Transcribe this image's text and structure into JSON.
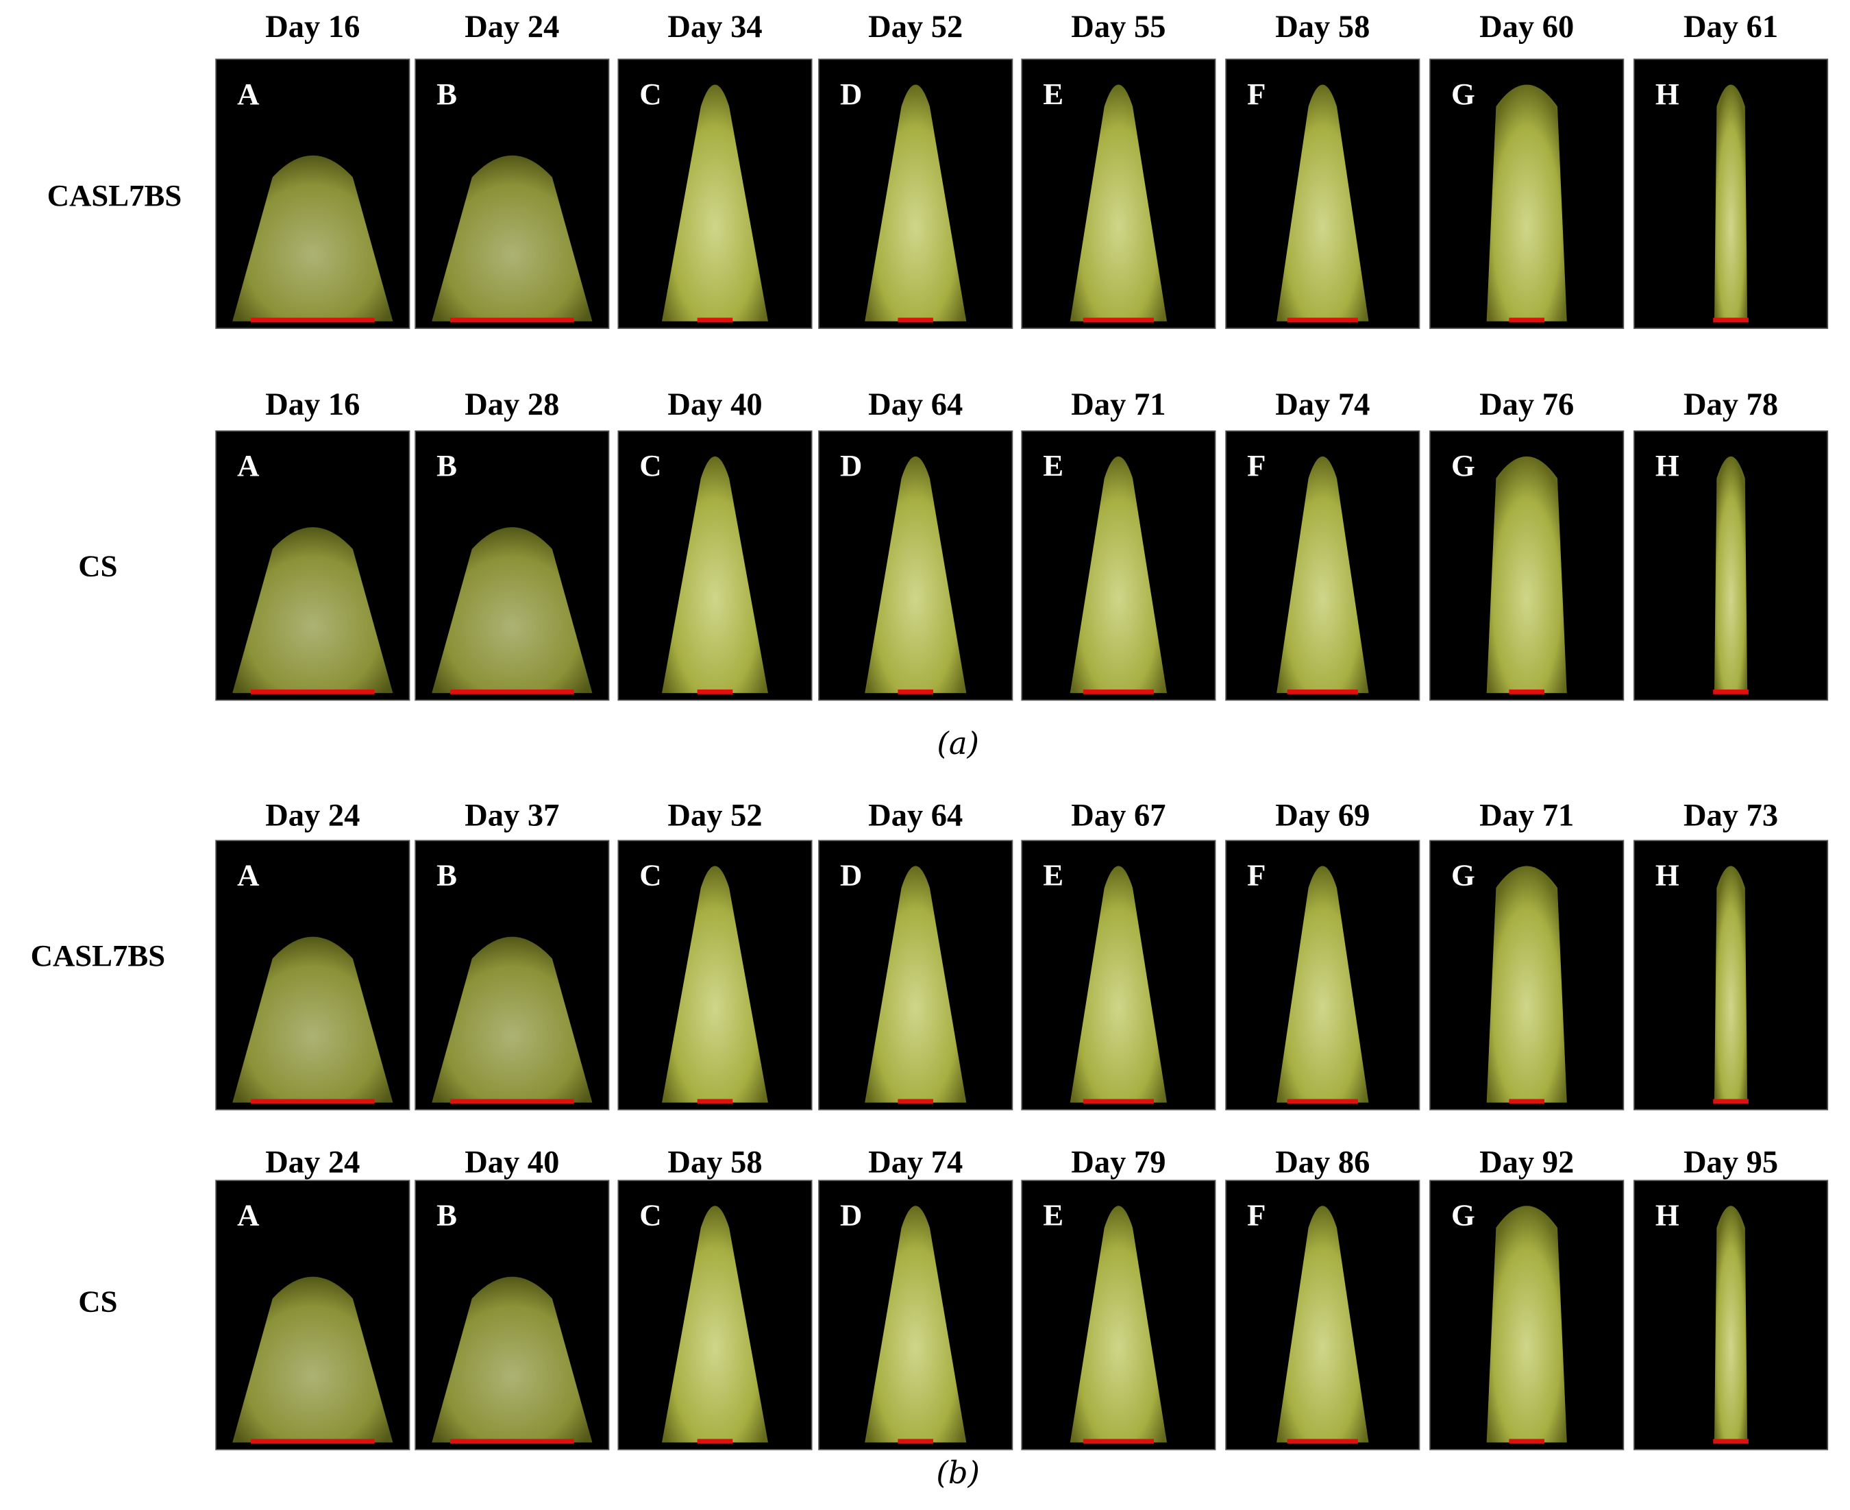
{
  "sections": [
    {
      "caption": "(a)",
      "rows": [
        {
          "label": "CASL7BS",
          "panels": [
            {
              "day": "Day 16",
              "letter": "A"
            },
            {
              "day": "Day 24",
              "letter": "B"
            },
            {
              "day": "Day 34",
              "letter": "C"
            },
            {
              "day": "Day 52",
              "letter": "D"
            },
            {
              "day": "Day 55",
              "letter": "E"
            },
            {
              "day": "Day 58",
              "letter": "F"
            },
            {
              "day": "Day 60",
              "letter": "G"
            },
            {
              "day": "Day 61",
              "letter": "H"
            }
          ]
        },
        {
          "label": "CS",
          "panels": [
            {
              "day": "Day 16",
              "letter": "A"
            },
            {
              "day": "Day 28",
              "letter": "B"
            },
            {
              "day": "Day 40",
              "letter": "C"
            },
            {
              "day": "Day 64",
              "letter": "D"
            },
            {
              "day": "Day 71",
              "letter": "E"
            },
            {
              "day": "Day 74",
              "letter": "F"
            },
            {
              "day": "Day 76",
              "letter": "G"
            },
            {
              "day": "Day 78",
              "letter": "H"
            }
          ]
        }
      ]
    },
    {
      "caption": "(b)",
      "rows": [
        {
          "label": "CASL7BS",
          "panels": [
            {
              "day": "Day 24",
              "letter": "A"
            },
            {
              "day": "Day 37",
              "letter": "B"
            },
            {
              "day": "Day 52",
              "letter": "C"
            },
            {
              "day": "Day 64",
              "letter": "D"
            },
            {
              "day": "Day 67",
              "letter": "E"
            },
            {
              "day": "Day 69",
              "letter": "F"
            },
            {
              "day": "Day 71",
              "letter": "G"
            },
            {
              "day": "Day 73",
              "letter": "H"
            }
          ]
        },
        {
          "label": "CS",
          "panels": [
            {
              "day": "Day 24",
              "letter": "A"
            },
            {
              "day": "Day 40",
              "letter": "B"
            },
            {
              "day": "Day 58",
              "letter": "C"
            },
            {
              "day": "Day 74",
              "letter": "D"
            },
            {
              "day": "Day 79",
              "letter": "E"
            },
            {
              "day": "Day 86",
              "letter": "F"
            },
            {
              "day": "Day 92",
              "letter": "G"
            },
            {
              "day": "Day 95",
              "letter": "H"
            }
          ]
        }
      ]
    }
  ]
}
